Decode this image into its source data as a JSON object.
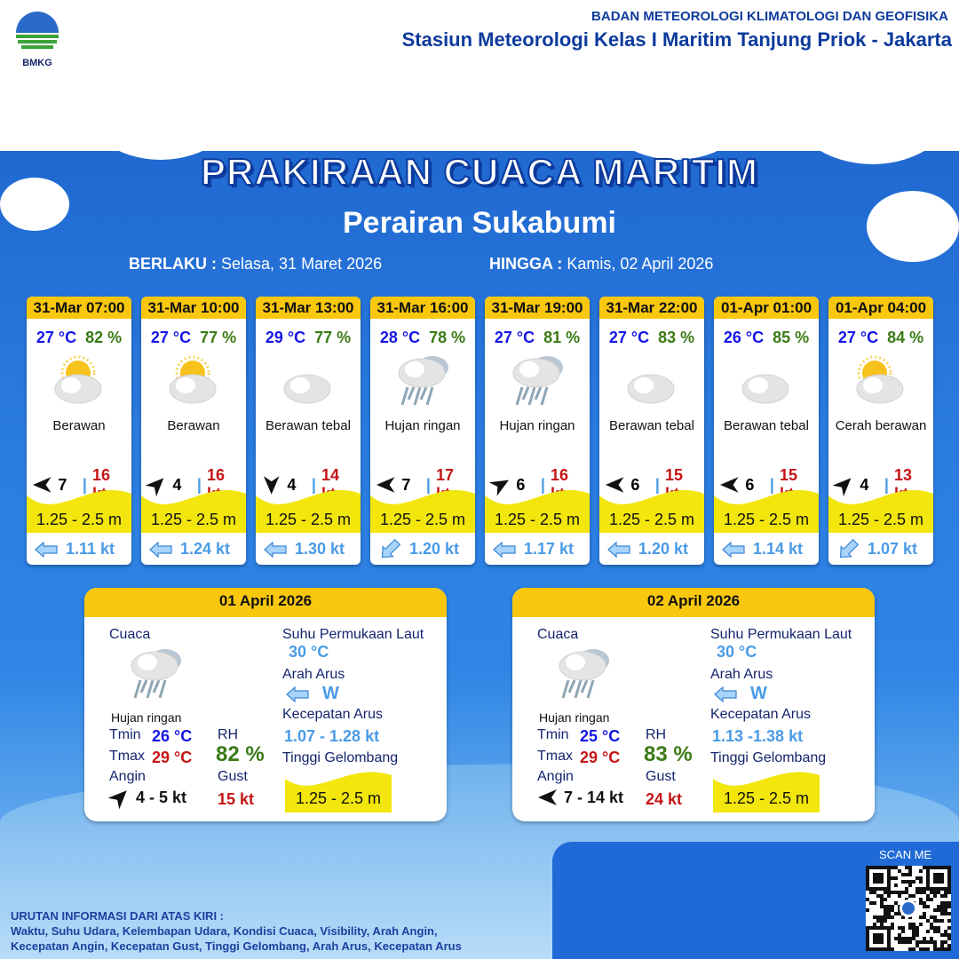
{
  "header": {
    "logo_text": "BMKG",
    "org": "BADAN METEOROLOGI KLIMATOLOGI DAN GEOFISIKA",
    "station": "Stasiun Meteorologi Kelas I Maritim Tanjung Priok - Jakarta"
  },
  "title": "PRAKIRAAN CUACA MARITIM",
  "subtitle": "Perairan Sukabumi",
  "validity": {
    "from_label": "BERLAKU :",
    "from_value": "Selasa, 31 Maret 2026",
    "to_label": "HINGGA :",
    "to_value": "Kamis, 02 April 2026"
  },
  "forecasts": [
    {
      "time": "31-Mar 07:00",
      "temp": "27 °C",
      "rh": "82 %",
      "icon": "partly-cloudy",
      "weather": "Berawan",
      "wind_dir_deg": 270,
      "wind": "7",
      "gust": "16 kt",
      "wave": "1.25 - 2.5 m",
      "current_dir_deg": 270,
      "current": "1.11 kt"
    },
    {
      "time": "31-Mar 10:00",
      "temp": "27 °C",
      "rh": "77 %",
      "icon": "partly-cloudy",
      "weather": "Berawan",
      "wind_dir_deg": 45,
      "wind": "4",
      "gust": "16 kt",
      "wave": "1.25 - 2.5 m",
      "current_dir_deg": 270,
      "current": "1.24 kt"
    },
    {
      "time": "31-Mar 13:00",
      "temp": "29 °C",
      "rh": "77 %",
      "icon": "cloudy",
      "weather": "Berawan tebal",
      "wind_dir_deg": 180,
      "wind": "4",
      "gust": "14 kt",
      "wave": "1.25 - 2.5 m",
      "current_dir_deg": 270,
      "current": "1.30 kt"
    },
    {
      "time": "31-Mar 16:00",
      "temp": "28 °C",
      "rh": "78 %",
      "icon": "rain",
      "weather": "Hujan ringan",
      "wind_dir_deg": 270,
      "wind": "7",
      "gust": "17 kt",
      "wave": "1.25 - 2.5 m",
      "current_dir_deg": 225,
      "current": "1.20 kt"
    },
    {
      "time": "31-Mar 19:00",
      "temp": "27 °C",
      "rh": "81 %",
      "icon": "rain",
      "weather": "Hujan ringan",
      "wind_dir_deg": 60,
      "wind": "6",
      "gust": "16 kt",
      "wave": "1.25 - 2.5 m",
      "current_dir_deg": 270,
      "current": "1.17 kt"
    },
    {
      "time": "31-Mar 22:00",
      "temp": "27 °C",
      "rh": "83 %",
      "icon": "cloudy",
      "weather": "Berawan tebal",
      "wind_dir_deg": 270,
      "wind": "6",
      "gust": "15 kt",
      "wave": "1.25 - 2.5 m",
      "current_dir_deg": 270,
      "current": "1.20 kt"
    },
    {
      "time": "01-Apr 01:00",
      "temp": "26 °C",
      "rh": "85 %",
      "icon": "cloudy",
      "weather": "Berawan tebal",
      "wind_dir_deg": 270,
      "wind": "6",
      "gust": "15 kt",
      "wave": "1.25 - 2.5 m",
      "current_dir_deg": 270,
      "current": "1.14 kt"
    },
    {
      "time": "01-Apr 04:00",
      "temp": "27 °C",
      "rh": "84 %",
      "icon": "sunny-cloudy",
      "weather": "Cerah berawan",
      "wind_dir_deg": 45,
      "wind": "4",
      "gust": "13 kt",
      "wave": "1.25 - 2.5 m",
      "current_dir_deg": 225,
      "current": "1.07 kt"
    }
  ],
  "daily": [
    {
      "date": "01 April 2026",
      "cuaca_label": "Cuaca",
      "weather": "Hujan ringan",
      "tmin_label": "Tmin",
      "tmin": "26 °C",
      "tmax_label": "Tmax",
      "tmax": "29 °C",
      "rh_label": "RH",
      "rh": "82 %",
      "angin_label": "Angin",
      "wind_dir_deg": 45,
      "wind": "4  - 5 kt",
      "gust_label": "Gust",
      "gust": "15 kt",
      "sst_label": "Suhu Permukaan Laut",
      "sst": "30 °C",
      "current_dir_label": "Arah Arus",
      "current_dir": "W",
      "current_speed_label": "Kecepatan Arus",
      "current_speed": "1.07  - 1.28 kt",
      "wave_label": "Tinggi Gelombang",
      "wave": "1.25 - 2.5 m"
    },
    {
      "date": "02 April 2026",
      "cuaca_label": "Cuaca",
      "weather": "Hujan ringan",
      "tmin_label": "Tmin",
      "tmin": "25 °C",
      "tmax_label": "Tmax",
      "tmax": "29 °C",
      "rh_label": "RH",
      "rh": "83 %",
      "angin_label": "Angin",
      "wind_dir_deg": 270,
      "wind": "7  - 14 kt",
      "gust_label": "Gust",
      "gust": "24 kt",
      "sst_label": "Suhu Permukaan Laut",
      "sst": "30 °C",
      "current_dir_label": "Arah Arus",
      "current_dir": "W",
      "current_speed_label": "Kecepatan Arus",
      "current_speed": "1.13 -1.38 kt",
      "wave_label": "Tinggi Gelombang",
      "wave": "1.25 - 2.5 m"
    }
  ],
  "footer": {
    "scan_label": "SCAN ME",
    "info_title": "URUTAN INFORMASI DARI ATAS KIRI :",
    "info_line1": "Waktu, Suhu Udara, Kelembapan Udara, Kondisi Cuaca, Visibility, Arah Angin,",
    "info_line2": "Kecepatan Angin, Kecepatan Gust, Tinggi Gelombang, Arah Arus, Kecepatan Arus"
  },
  "colors": {
    "header_yellow": "#f9c80e",
    "wave_yellow": "#f2e60c",
    "temp": "#1515e8",
    "rh": "#3b7a16",
    "gust": "#c41515",
    "current": "#4a9be6"
  }
}
